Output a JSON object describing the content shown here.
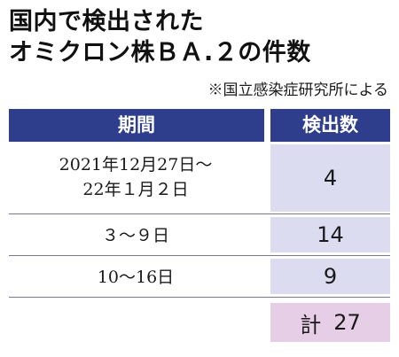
{
  "title_line1": "国内で検出された",
  "title_line2": "オミクロン株ＢＡ.２の件数",
  "source": "※国立感染症研究所による",
  "chart_data": {
    "type": "table",
    "columns": [
      "期間",
      "検出数"
    ],
    "rows": [
      {
        "period_line1": "2021年12月27日～",
        "period_line2": "22年１月２日",
        "count": "4"
      },
      {
        "period_line1": "３～９日",
        "count": "14"
      },
      {
        "period_line1": "10～16日",
        "count": "9"
      }
    ],
    "total_label": "計",
    "total_value": "27"
  },
  "colors": {
    "header_bg": "#2e3d8c",
    "count_bg": "#dcdcf0",
    "total_bg": "#e6cfe6"
  }
}
